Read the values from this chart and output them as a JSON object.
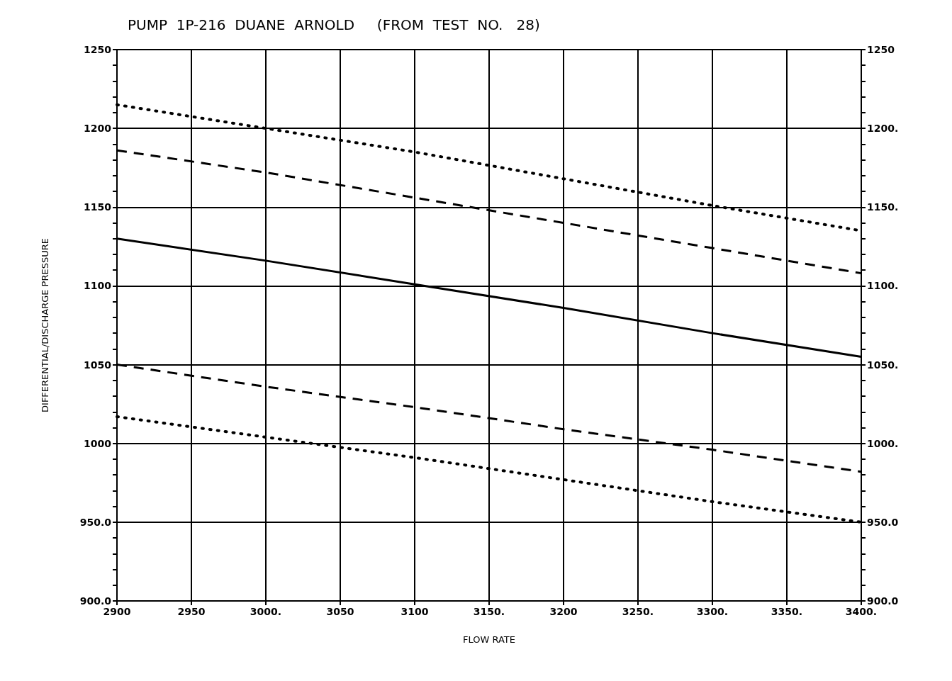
{
  "chart_data": {
    "type": "line",
    "title": "PUMP  1P-216  DUANE  ARNOLD     (FROM  TEST  NO.   28)",
    "xlabel": "FLOW RATE",
    "ylabel": "DIFFERENTIAL/DISCHARGE PRESSURE",
    "x": [
      2900,
      3000,
      3100,
      3200,
      3300,
      3400
    ],
    "series": [
      {
        "color": "#000000",
        "line_style": "dotted",
        "values": [
          1215,
          1200,
          1185,
          1168,
          1151,
          1135
        ]
      },
      {
        "color": "#000000",
        "line_style": "dashed",
        "values": [
          1186,
          1172,
          1156,
          1140,
          1124,
          1108
        ]
      },
      {
        "color": "#000000",
        "line_style": "solid",
        "values": [
          1130,
          1116,
          1101,
          1086,
          1070,
          1055
        ]
      },
      {
        "color": "#000000",
        "line_style": "dashed",
        "values": [
          1050,
          1036,
          1023,
          1009,
          996,
          982
        ]
      },
      {
        "color": "#000000",
        "line_style": "dotted",
        "values": [
          1017,
          1004,
          991,
          977,
          963,
          950
        ]
      }
    ],
    "xlim": [
      2900,
      3400
    ],
    "xticks": [
      2900,
      2950,
      {
        "value": 3000,
        "label": "3000."
      },
      3050,
      3100,
      {
        "value": 3150,
        "label": "3150."
      },
      3200,
      {
        "value": 3250,
        "label": "3250."
      },
      {
        "value": 3300,
        "label": "3300."
      },
      {
        "value": 3350,
        "label": "3350."
      },
      {
        "value": 3400,
        "label": "3400."
      }
    ],
    "ylim": [
      900,
      1250
    ],
    "yticks": [
      {
        "value": 900,
        "label": "900.0"
      },
      {
        "value": 910,
        "label": null
      },
      {
        "value": 920,
        "label": null
      },
      {
        "value": 930,
        "label": null
      },
      {
        "value": 940,
        "label": null
      },
      {
        "value": 950,
        "label": "950.0"
      },
      {
        "value": 960,
        "label": null
      },
      {
        "value": 970,
        "label": null
      },
      {
        "value": 980,
        "label": null
      },
      {
        "value": 990,
        "label": null
      },
      1000,
      {
        "value": 1010,
        "label": null
      },
      {
        "value": 1020,
        "label": null
      },
      {
        "value": 1030,
        "label": null
      },
      {
        "value": 1040,
        "label": null
      },
      1050,
      {
        "value": 1060,
        "label": null
      },
      {
        "value": 1070,
        "label": null
      },
      {
        "value": 1080,
        "label": null
      },
      {
        "value": 1090,
        "label": null
      },
      1100,
      {
        "value": 1110,
        "label": null
      },
      {
        "value": 1120,
        "label": null
      },
      {
        "value": 1130,
        "label": null
      },
      {
        "value": 1140,
        "label": null
      },
      1150,
      {
        "value": 1160,
        "label": null
      },
      {
        "value": 1170,
        "label": null
      },
      {
        "value": 1180,
        "label": null
      },
      {
        "value": 1190,
        "label": null
      },
      1200,
      {
        "value": 1210,
        "label": null
      },
      {
        "value": 1220,
        "label": null
      },
      {
        "value": 1230,
        "label": null
      },
      {
        "value": 1240,
        "label": null
      },
      1250
    ],
    "y2lim": [
      900,
      1250
    ],
    "y2ticks": [
      {
        "value": 900,
        "label": "900.0"
      },
      {
        "value": 910,
        "label": null
      },
      {
        "value": 920,
        "label": null
      },
      {
        "value": 930,
        "label": null
      },
      {
        "value": 940,
        "label": null
      },
      {
        "value": 950,
        "label": "950.0"
      },
      {
        "value": 960,
        "label": null
      },
      {
        "value": 970,
        "label": null
      },
      {
        "value": 980,
        "label": null
      },
      {
        "value": 990,
        "label": null
      },
      {
        "value": 1000,
        "label": "1000."
      },
      {
        "value": 1010,
        "label": null
      },
      {
        "value": 1020,
        "label": null
      },
      {
        "value": 1030,
        "label": null
      },
      {
        "value": 1040,
        "label": null
      },
      {
        "value": 1050,
        "label": "1050."
      },
      {
        "value": 1060,
        "label": null
      },
      {
        "value": 1070,
        "label": null
      },
      {
        "value": 1080,
        "label": null
      },
      {
        "value": 1090,
        "label": null
      },
      {
        "value": 1100,
        "label": "1100."
      },
      {
        "value": 1110,
        "label": null
      },
      {
        "value": 1120,
        "label": null
      },
      {
        "value": 1130,
        "label": null
      },
      {
        "value": 1140,
        "label": null
      },
      {
        "value": 1150,
        "label": "1150."
      },
      {
        "value": 1160,
        "label": null
      },
      {
        "value": 1170,
        "label": null
      },
      {
        "value": 1180,
        "label": null
      },
      {
        "value": 1190,
        "label": null
      },
      {
        "value": 1200,
        "label": "1200."
      },
      {
        "value": 1210,
        "label": null
      },
      {
        "value": 1220,
        "label": null
      },
      {
        "value": 1230,
        "label": null
      },
      {
        "value": 1240,
        "label": null
      },
      1250
    ],
    "grid": true,
    "marker": "none"
  }
}
